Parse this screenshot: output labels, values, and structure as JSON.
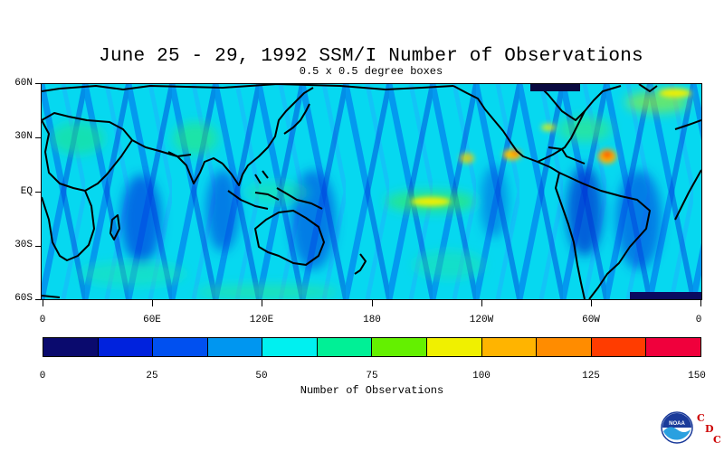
{
  "title": "June 25 - 29, 1992 SSM/I Number of Observations",
  "subtitle": "0.5 x 0.5 degree boxes",
  "latitude_labels": [
    "60N",
    "30N",
    "EQ",
    "30S",
    "60S"
  ],
  "longitude_labels": [
    "0",
    "60E",
    "120E",
    "180",
    "120W",
    "60W",
    "0"
  ],
  "colorbar": {
    "title": "Number of Observations",
    "tick_labels": [
      "0",
      "25",
      "50",
      "75",
      "100",
      "125",
      "150"
    ],
    "colors": [
      "#0a0a6e",
      "#0022dd",
      "#0050f0",
      "#0096f0",
      "#00f0f0",
      "#00f096",
      "#64f000",
      "#f0f000",
      "#ffb400",
      "#ff8c00",
      "#ff3c00",
      "#f0003c"
    ]
  },
  "logos": {
    "noaa": "NOAA",
    "cdc": [
      "C",
      "D",
      "C"
    ]
  }
}
